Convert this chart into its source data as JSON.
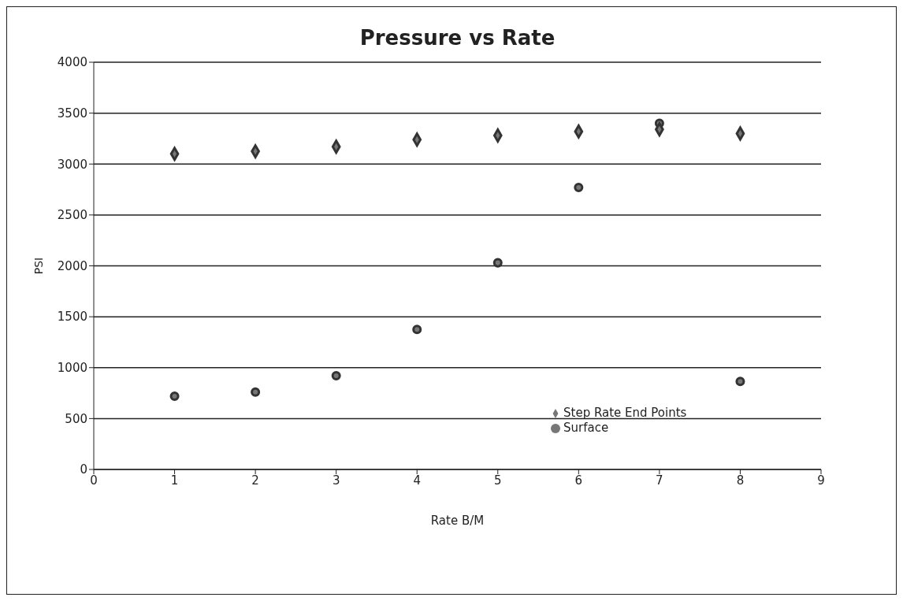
{
  "chart_data": {
    "type": "scatter",
    "title": "Pressure vs Rate",
    "xlabel": "Rate B/M",
    "ylabel": "PSI",
    "xlim": [
      0,
      9
    ],
    "xticks": [
      0,
      1,
      2,
      3,
      4,
      5,
      6,
      7,
      8,
      9
    ],
    "ylim": [
      0,
      4000
    ],
    "yticks": [
      0,
      500,
      1000,
      1500,
      2000,
      2500,
      3000,
      3500,
      4000
    ],
    "grid": "y",
    "legend": "bottom right",
    "series": [
      {
        "name": "Surface",
        "color": "#333333",
        "marker": "circle",
        "x": [
          1,
          2,
          3,
          4,
          5,
          6,
          7,
          8
        ],
        "values": [
          720,
          760,
          920,
          1375,
          2030,
          2770,
          3400,
          865
        ]
      },
      {
        "name": "Step Rate End Points",
        "color": "#333333",
        "marker": "diamond",
        "x": [
          1,
          2,
          3,
          4,
          5,
          6,
          7,
          8
        ],
        "values": [
          3100,
          3125,
          3170,
          3240,
          3280,
          3320,
          3340,
          3300
        ]
      }
    ]
  }
}
